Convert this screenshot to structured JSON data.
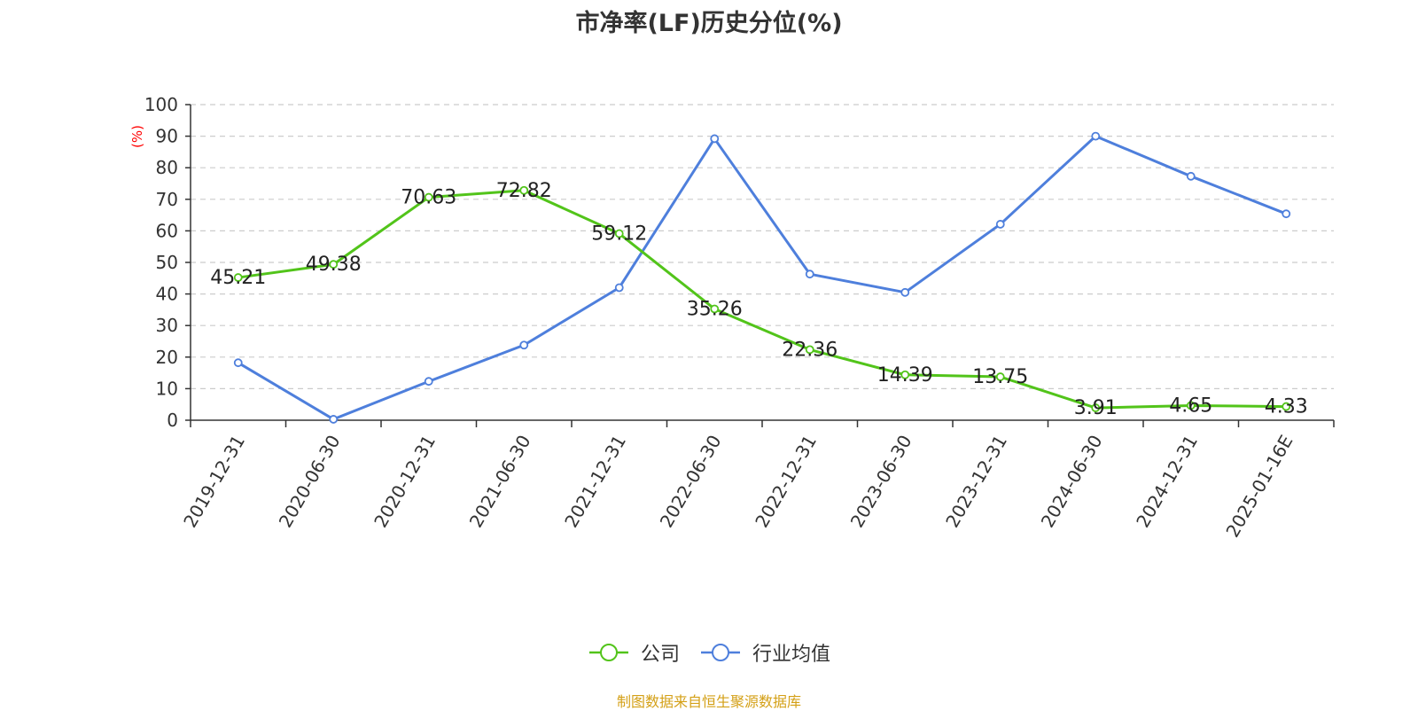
{
  "chart_data": {
    "type": "line",
    "title": "市净率(LF)历史分位(%)",
    "ylabel": "(%)",
    "xlabel": "",
    "ylim": [
      0,
      100
    ],
    "yticks": [
      0,
      10,
      20,
      30,
      40,
      50,
      60,
      70,
      80,
      90,
      100
    ],
    "categories": [
      "2019-12-31",
      "2020-06-30",
      "2020-12-31",
      "2021-06-30",
      "2021-12-31",
      "2022-06-30",
      "2022-12-31",
      "2023-06-30",
      "2023-12-31",
      "2024-06-30",
      "2024-12-31",
      "2025-01-16E"
    ],
    "grid": true,
    "legend_position": "bottom",
    "series": [
      {
        "name": "公司",
        "color": "#52c41a",
        "values": [
          45.21,
          49.38,
          70.63,
          72.82,
          59.12,
          35.26,
          22.36,
          14.39,
          13.75,
          3.91,
          4.65,
          4.33
        ],
        "labels": [
          "45.21",
          "49.38",
          "70.63",
          "72.82",
          "59.12",
          "35.26",
          "22.36",
          "14.39",
          "13.75",
          "3.91",
          "4.65",
          "4.33"
        ]
      },
      {
        "name": "行业均值",
        "color": "#4e7fdc",
        "values": [
          18.2,
          0.3,
          12.3,
          23.8,
          42.0,
          89.2,
          46.3,
          40.5,
          62.1,
          90.0,
          77.3,
          65.4
        ]
      }
    ]
  },
  "source": "制图数据来自恒生聚源数据库",
  "colors": {
    "title": "#333333",
    "axis": "#333333",
    "grid": "#cccccc",
    "ylabel": "#ff0000",
    "source": "#d4a017"
  }
}
